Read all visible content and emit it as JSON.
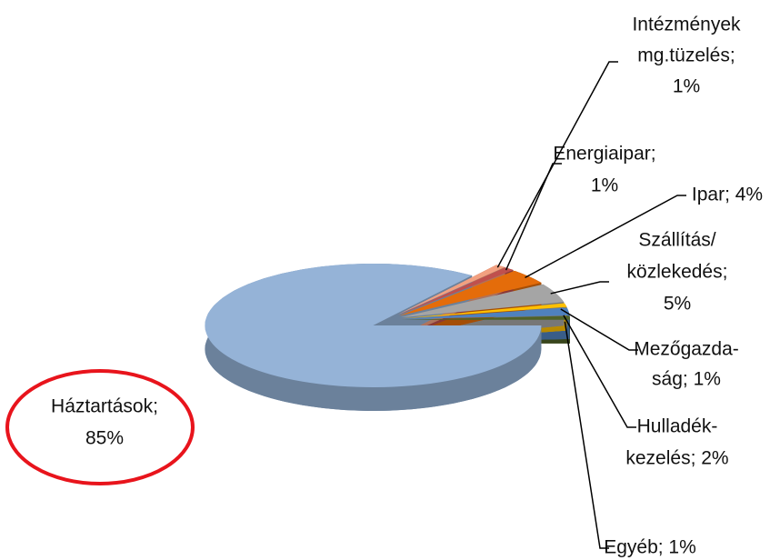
{
  "chart_data": {
    "type": "pie3d",
    "labels": [
      [
        "Egyéb; 1%"
      ],
      [
        "Hulladék-",
        "kezelés; 2%"
      ],
      [
        "Mezőgazda-",
        "ság; 1%"
      ],
      [
        "Szállítás/",
        "közlekedés;",
        "5%"
      ],
      [
        "Ipar; 4%"
      ],
      [
        "Energiaipar;",
        "1%"
      ],
      [
        "Intézmények",
        "mg.tüzelés;",
        "1%"
      ],
      [
        "Háztartások;",
        "85%"
      ]
    ],
    "values": [
      1,
      2,
      1,
      5,
      4,
      1,
      1,
      85
    ],
    "colors": [
      "#4f6228",
      "#4f81bd",
      "#ffc000",
      "#a5a5a5",
      "#e46c0a",
      "#c0504d",
      "#f2a080",
      "#95b3d7"
    ]
  }
}
